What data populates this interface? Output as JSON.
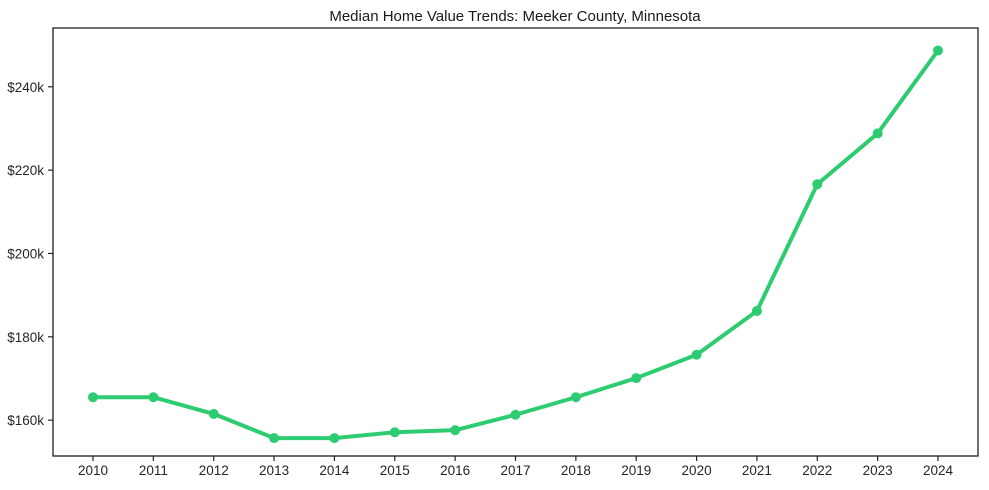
{
  "chart_data": {
    "type": "line",
    "title": "Median Home Value Trends: Meeker County, Minnesota",
    "x": [
      2010,
      2011,
      2012,
      2013,
      2014,
      2015,
      2016,
      2017,
      2018,
      2019,
      2020,
      2021,
      2022,
      2023,
      2024
    ],
    "values": [
      165500,
      165500,
      161500,
      155700,
      155700,
      157100,
      157600,
      161300,
      165500,
      170100,
      175700,
      186200,
      216600,
      228800,
      248700
    ],
    "xlabel": "",
    "ylabel": "",
    "ylim": [
      151400,
      254100
    ],
    "yticks": [
      160000,
      180000,
      200000,
      220000,
      240000
    ],
    "ytick_labels": [
      "$160k",
      "$180k",
      "$200k",
      "$220k",
      "$240k"
    ],
    "xtick_labels": [
      "2010",
      "2011",
      "2012",
      "2013",
      "2014",
      "2015",
      "2016",
      "2017",
      "2018",
      "2019",
      "2020",
      "2021",
      "2022",
      "2023",
      "2024"
    ],
    "grid": false,
    "legend": "none",
    "line_color": "#2ecc71",
    "marker": "circle",
    "axis_color": "#1f1f1f",
    "tick_color": "#262626"
  }
}
